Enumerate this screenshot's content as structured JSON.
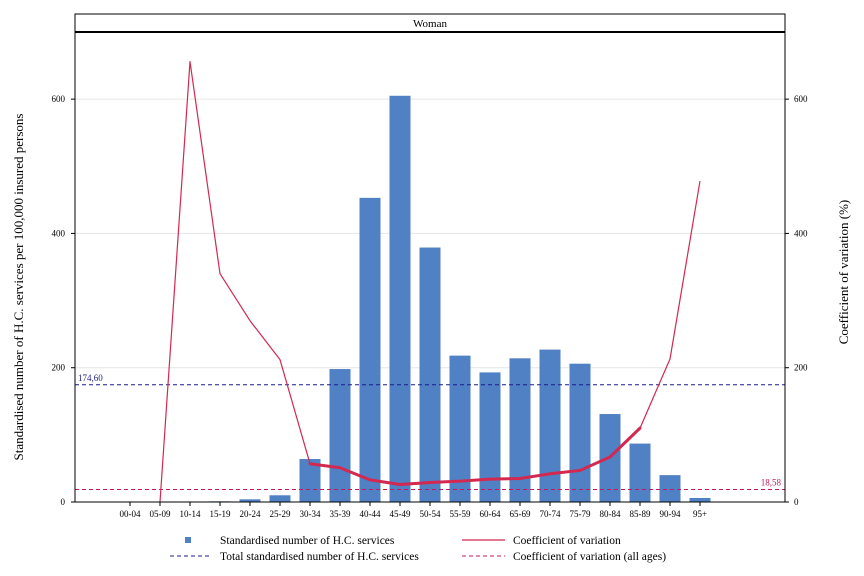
{
  "chart_data": {
    "type": "bar",
    "panel_title": "Woman",
    "categories": [
      "00-04",
      "05-09",
      "10-14",
      "15-19",
      "20-24",
      "25-29",
      "30-34",
      "35-39",
      "40-44",
      "45-49",
      "50-54",
      "55-59",
      "60-64",
      "65-69",
      "70-74",
      "75-79",
      "80-84",
      "85-89",
      "90-94",
      "95+"
    ],
    "series": [
      {
        "name": "Standardised number of H.C. services",
        "kind": "bar",
        "axis": "left",
        "color": "#4f81c4",
        "values": [
          0,
          0,
          0,
          1,
          4,
          10,
          64,
          198,
          453,
          605,
          379,
          218,
          193,
          214,
          227,
          206,
          131,
          87,
          40,
          6
        ]
      },
      {
        "name": "Coefficient of variation",
        "kind": "line",
        "axis": "right",
        "color": "#d3284f",
        "values": [
          null,
          0,
          656,
          340,
          270,
          212,
          57,
          51,
          33,
          26,
          29,
          31,
          34,
          35,
          42,
          47,
          67,
          110,
          213,
          478
        ],
        "bold_from": "30-34",
        "bold_to": "85-89"
      }
    ],
    "reference_lines": [
      {
        "name": "Total standardised number of H.C. services",
        "axis": "left",
        "value": 174.6,
        "label": "174,60",
        "color": "#1a1a8c"
      },
      {
        "name": "Coefficient of variation (all ages)",
        "axis": "right",
        "value": 18.58,
        "label": "18,58",
        "color": "#c2185b"
      }
    ],
    "ylabel": "Standardised number of H.C. services per 100,000 insured persons",
    "y2label": "Coefficient of variation (%)",
    "ylim": [
      0,
      700
    ],
    "y2lim": [
      0,
      700
    ],
    "yticks": [
      0,
      200,
      400,
      600
    ],
    "y2ticks": [
      0,
      200,
      400,
      600
    ],
    "grid": true,
    "legend_position": "bottom"
  }
}
